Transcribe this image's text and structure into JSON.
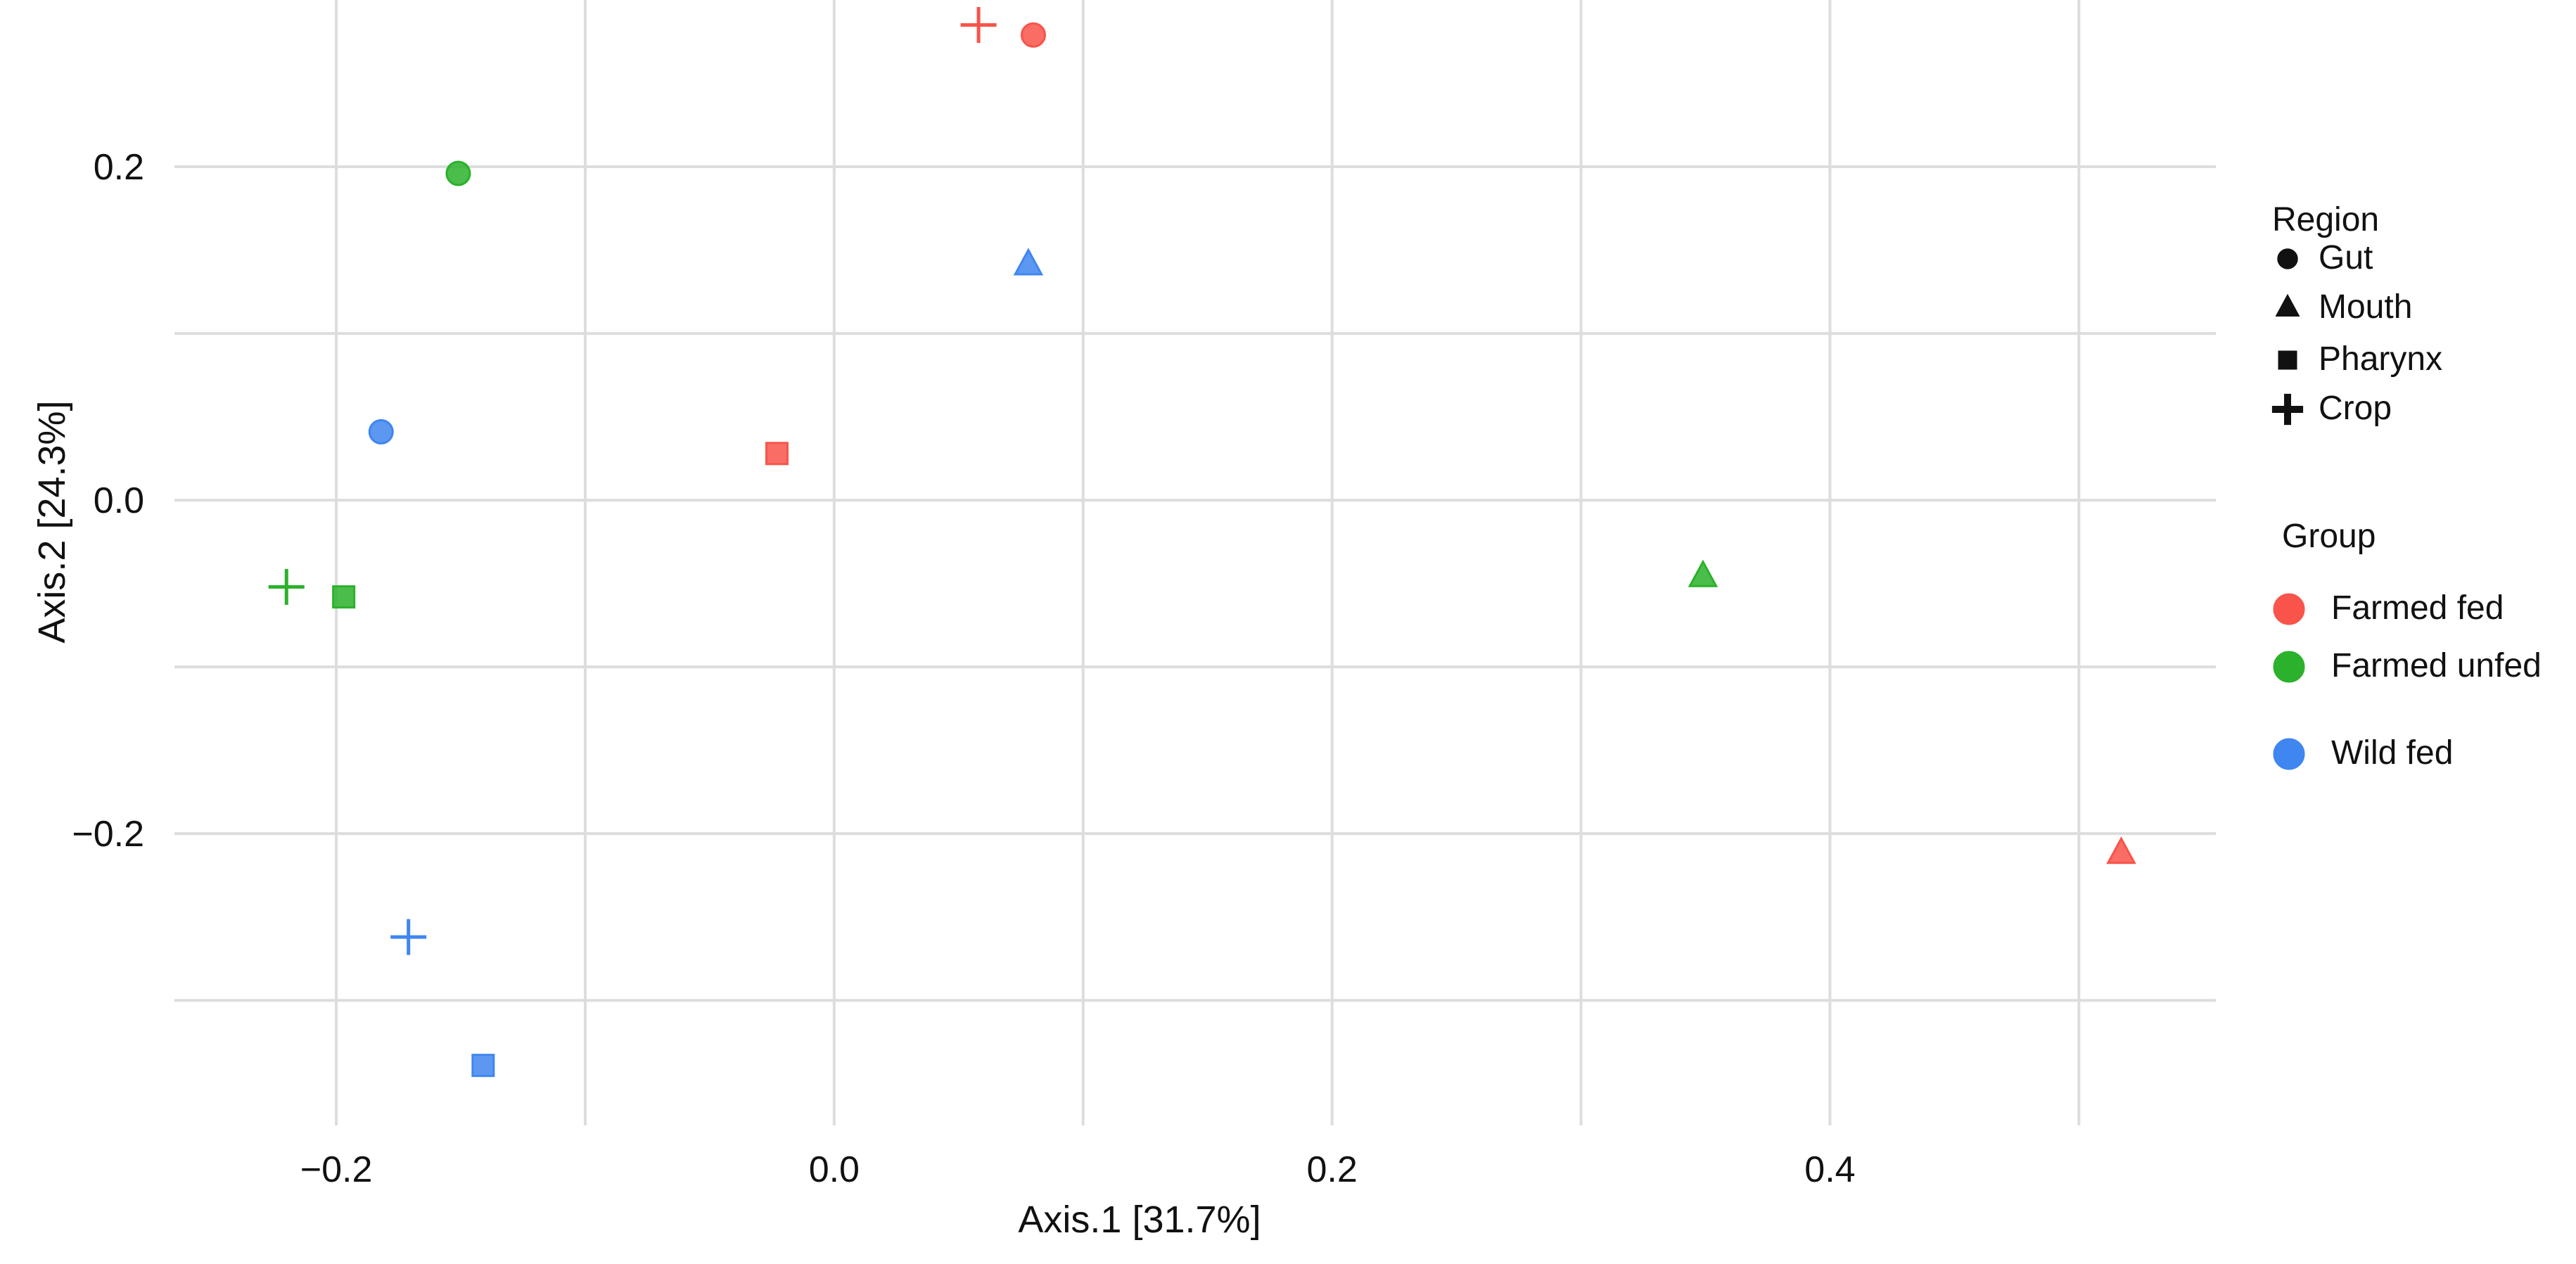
{
  "chart_data": {
    "type": "scatter",
    "title": "",
    "xlabel": "Axis.1 [31.7%]",
    "ylabel": "Axis.2 [24.3%]",
    "xlim": [
      -0.265,
      0.555
    ],
    "ylim": [
      -0.375,
      0.3
    ],
    "x_ticks": [
      -0.2,
      0.0,
      0.2,
      0.4
    ],
    "x_tick_labels": [
      "−0.2",
      "0.0",
      "0.2",
      "0.4"
    ],
    "y_ticks": [
      -0.2,
      0.0,
      0.2
    ],
    "y_tick_labels": [
      "−0.2",
      "0.0",
      "0.2"
    ],
    "x_minor_grid": [
      -0.1,
      0.1,
      0.3,
      0.5
    ],
    "y_minor_grid": [
      -0.3,
      -0.1,
      0.1
    ],
    "grid": true,
    "legend_placement": "right",
    "legends": [
      {
        "title": "Region",
        "items": [
          {
            "label": "Gut",
            "shape": "circle"
          },
          {
            "label": "Mouth",
            "shape": "triangle"
          },
          {
            "label": "Pharynx",
            "shape": "square"
          },
          {
            "label": "Crop",
            "shape": "plus"
          }
        ]
      },
      {
        "title": "Group",
        "items": [
          {
            "label": "Farmed fed",
            "color": "#f8544a"
          },
          {
            "label": "Farmed unfed",
            "color": "#2bb12b"
          },
          {
            "label": "Wild fed",
            "color": "#3f86f0"
          }
        ]
      }
    ],
    "points": [
      {
        "group": "Farmed fed",
        "region": "Crop",
        "x": 0.058,
        "y": 0.285
      },
      {
        "group": "Farmed fed",
        "region": "Gut",
        "x": 0.08,
        "y": 0.279
      },
      {
        "group": "Farmed fed",
        "region": "Pharynx",
        "x": -0.023,
        "y": 0.028
      },
      {
        "group": "Farmed fed",
        "region": "Mouth",
        "x": 0.517,
        "y": -0.212
      },
      {
        "group": "Farmed unfed",
        "region": "Gut",
        "x": -0.151,
        "y": 0.196
      },
      {
        "group": "Farmed unfed",
        "region": "Crop",
        "x": -0.22,
        "y": -0.052
      },
      {
        "group": "Farmed unfed",
        "region": "Pharynx",
        "x": -0.197,
        "y": -0.058
      },
      {
        "group": "Farmed unfed",
        "region": "Mouth",
        "x": 0.349,
        "y": -0.046
      },
      {
        "group": "Wild fed",
        "region": "Mouth",
        "x": 0.078,
        "y": 0.141
      },
      {
        "group": "Wild fed",
        "region": "Gut",
        "x": -0.182,
        "y": 0.041
      },
      {
        "group": "Wild fed",
        "region": "Crop",
        "x": -0.171,
        "y": -0.262
      },
      {
        "group": "Wild fed",
        "region": "Pharynx",
        "x": -0.141,
        "y": -0.339
      }
    ]
  },
  "colors": {
    "Farmed fed": "#f8544a",
    "Farmed unfed": "#2bb12b",
    "Wild fed": "#3f86f0",
    "grid": "#dddddd",
    "text": "#111111"
  }
}
